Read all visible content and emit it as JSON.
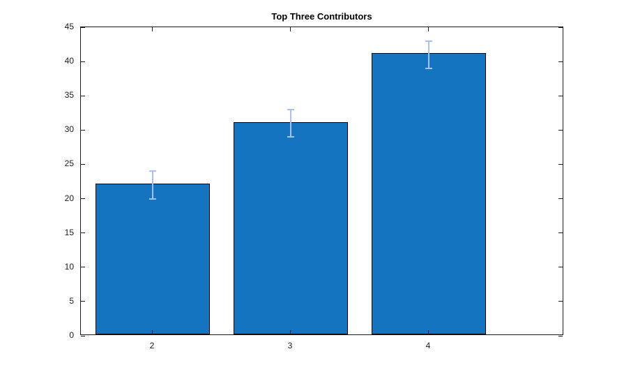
{
  "chart_data": {
    "type": "bar",
    "title": "Top Three Contributors",
    "categories": [
      "2",
      "3",
      "4"
    ],
    "x": [
      2,
      3,
      4
    ],
    "values": [
      22,
      31,
      41
    ],
    "errors": [
      2,
      2,
      2
    ],
    "xlabel": "",
    "ylabel": "",
    "ylim": [
      0,
      45
    ],
    "yticks": [
      0,
      5,
      10,
      15,
      20,
      25,
      30,
      35,
      40,
      45
    ],
    "xlim": [
      1.48,
      4.98
    ],
    "bar_width_ratio": 0.83,
    "grid": false,
    "legend": null,
    "colors": {
      "bar_fill": "#1574bf",
      "bar_edge": "#000000",
      "error_bar": "#a8c2f0",
      "axis": "#1a1a1a",
      "background": "#ffffff"
    }
  }
}
